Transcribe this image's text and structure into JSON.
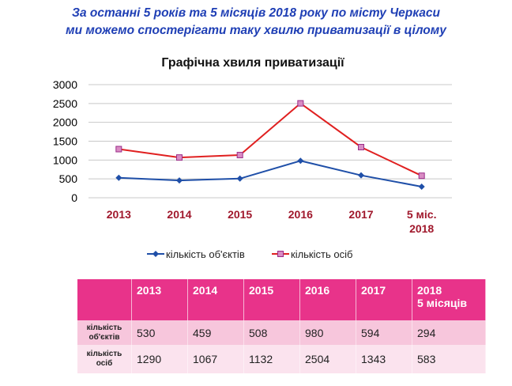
{
  "heading": {
    "line1": "За останні 5 років та 5 місяців 2018 року по місту Черкаси",
    "line2": "ми можемо спостерігати таку хвилю приватизації в цілому"
  },
  "chart_data": {
    "type": "line",
    "title": "Графічна хвиля приватизації",
    "categories": [
      "2013",
      "2014",
      "2015",
      "2016",
      "2017",
      "5 міс. 2018"
    ],
    "category_lines": [
      [
        "2013"
      ],
      [
        "2014"
      ],
      [
        "2015"
      ],
      [
        "2016"
      ],
      [
        "2017"
      ],
      [
        "5 міс.",
        "2018"
      ]
    ],
    "series": [
      {
        "name": "кількість об'єктів",
        "values": [
          530,
          459,
          508,
          980,
          594,
          294
        ],
        "color": "#1f4fa8",
        "marker": "diamond"
      },
      {
        "name": "кількість осіб",
        "values": [
          1290,
          1067,
          1132,
          2504,
          1343,
          583
        ],
        "color": "#e02020",
        "marker": "square"
      }
    ],
    "ylim": [
      0,
      3000
    ],
    "yticks": [
      "0",
      "500",
      "1000",
      "1500",
      "2000",
      "2500",
      "3000"
    ],
    "grid": true,
    "legend_position": "bottom"
  },
  "table": {
    "header": [
      [
        "2013"
      ],
      [
        "2014"
      ],
      [
        "2015"
      ],
      [
        "2016"
      ],
      [
        "2017"
      ],
      [
        "2018",
        "5 місяців"
      ]
    ],
    "rows": [
      {
        "label": [
          "кількість",
          "об'єктів"
        ],
        "values": [
          "530",
          "459",
          "508",
          "980",
          "594",
          "294"
        ]
      },
      {
        "label": [
          "кількість",
          "осіб"
        ],
        "values": [
          "1290",
          "1067",
          "1132",
          "2504",
          "1343",
          "583"
        ]
      }
    ]
  }
}
